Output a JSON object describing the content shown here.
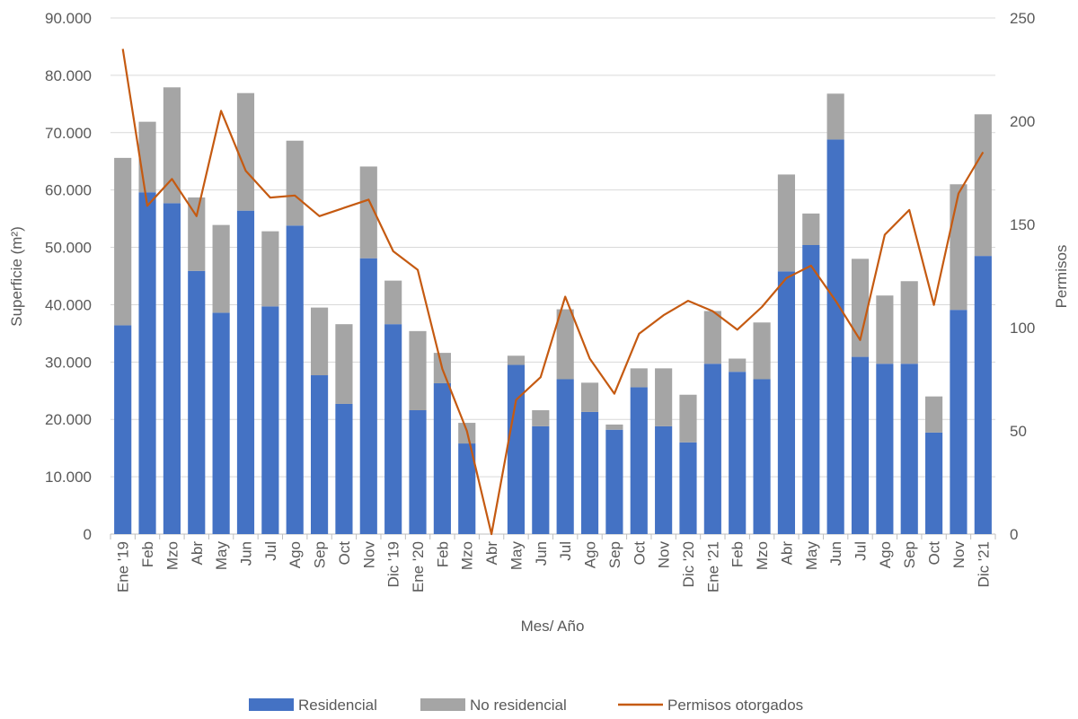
{
  "chart_data": {
    "type": "bar",
    "stacked": true,
    "xlabel": "Mes/ Año",
    "ylabel": "Superficie (m²)",
    "y2label": "Permisos",
    "ylim": [
      0,
      90000
    ],
    "y2lim": [
      0,
      250
    ],
    "yticks": [
      "0",
      "10.000",
      "20.000",
      "30.000",
      "40.000",
      "50.000",
      "60.000",
      "70.000",
      "80.000",
      "90.000"
    ],
    "y2ticks": [
      "0",
      "50",
      "100",
      "150",
      "200",
      "250"
    ],
    "grid": true,
    "legend_position": "bottom",
    "categories": [
      "Ene '19",
      "Feb",
      "Mzo",
      "Abr",
      "May",
      "Jun",
      "Jul",
      "Ago",
      "Sep",
      "Oct",
      "Nov",
      "Dic '19",
      "Ene '20",
      "Feb",
      "Mzo",
      "Abr",
      "May",
      "Jun",
      "Jul",
      "Ago",
      "Sep",
      "Oct",
      "Nov",
      "Dic '20",
      "Ene '21",
      "Feb",
      "Mzo",
      "Abr",
      "May",
      "Jun",
      "Jul",
      "Ago",
      "Sep",
      "Oct",
      "Nov",
      "Dic '21"
    ],
    "series": [
      {
        "name": "Residencial",
        "kind": "bar",
        "color": "#4472c4",
        "values": [
          36400,
          59600,
          57700,
          45900,
          38600,
          56400,
          39700,
          53800,
          27700,
          22700,
          48100,
          36600,
          21600,
          26300,
          15800,
          0,
          29500,
          18800,
          27000,
          21300,
          18200,
          25600,
          18800,
          16000,
          29700,
          28300,
          27000,
          45800,
          50400,
          68800,
          30900,
          29700,
          29700,
          17700,
          39100,
          48500
        ]
      },
      {
        "name": "No residencial",
        "kind": "bar",
        "color": "#a5a5a5",
        "values": [
          29200,
          12300,
          20200,
          12800,
          15300,
          20500,
          13100,
          14800,
          11800,
          13900,
          16000,
          7600,
          13800,
          5300,
          3600,
          0,
          1600,
          2800,
          12200,
          5100,
          900,
          3300,
          10100,
          8300,
          9200,
          2300,
          9900,
          16900,
          5500,
          8000,
          17100,
          11900,
          14400,
          6300,
          21900,
          24700
        ]
      },
      {
        "name": "Permisos otorgados",
        "kind": "line",
        "axis": "right",
        "color": "#c55a11",
        "values": [
          235,
          159,
          172,
          154,
          205,
          176,
          163,
          164,
          154,
          158,
          162,
          137,
          128,
          80,
          50,
          0,
          65,
          76,
          115,
          85,
          68,
          97,
          106,
          113,
          108,
          99,
          110,
          124,
          130,
          113,
          94,
          145,
          157,
          111,
          165,
          185
        ]
      }
    ]
  }
}
